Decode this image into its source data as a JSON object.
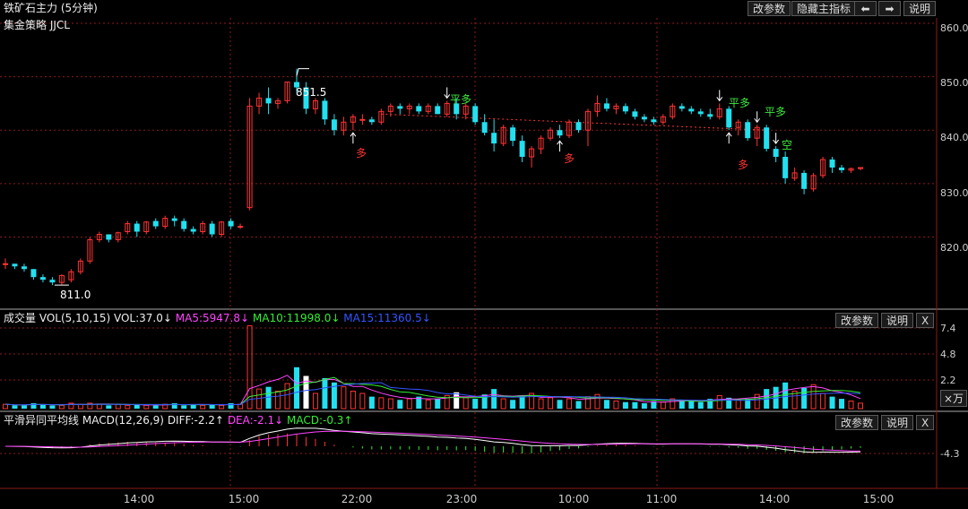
{
  "header": {
    "title": "铁矿石主力 (5分钟)",
    "strategy": "集金策略 JJCL",
    "btn_params": "改参数",
    "btn_hide": "隐藏主指标",
    "btn_left": "⬅",
    "btn_right": "➡",
    "btn_help": "说明"
  },
  "colors": {
    "up": "#ff3333",
    "down": "#22e0f0",
    "bg": "#000000",
    "grid": "#8b1a1a"
  },
  "main_chart": {
    "price_axis": [
      "860.0",
      "850.0",
      "840.0",
      "830.0",
      "820.0"
    ],
    "price_range": [
      807,
      861
    ],
    "high_label": "851.5",
    "low_label": "811.0",
    "signals": [
      {
        "text": "平多",
        "idx": 47,
        "pos": "above"
      },
      {
        "text": "平多",
        "idx": 76,
        "pos": "above"
      },
      {
        "text": "平多",
        "idx": 80,
        "pos": "above"
      },
      {
        "text": "空",
        "idx": 82,
        "pos": "above"
      },
      {
        "text": "多",
        "idx": 37,
        "pos": "below"
      },
      {
        "text": "多",
        "idx": 59,
        "pos": "below"
      },
      {
        "text": "多",
        "idx": 77,
        "pos": "below"
      }
    ],
    "candles": [
      [
        815,
        816,
        814,
        815
      ],
      [
        815,
        815,
        814,
        814.5
      ],
      [
        814.5,
        815,
        813.5,
        814
      ],
      [
        814,
        814,
        812,
        812.5
      ],
      [
        812.5,
        813,
        811.5,
        812
      ],
      [
        812,
        812.5,
        811,
        811.5
      ],
      [
        811.5,
        813,
        811,
        812.8
      ],
      [
        812,
        814,
        811.5,
        813.5
      ],
      [
        813.5,
        816,
        813,
        815.5
      ],
      [
        815.5,
        820,
        815,
        819.5
      ],
      [
        819.5,
        821,
        819,
        820.5
      ],
      [
        820.5,
        820.5,
        819,
        819.5
      ],
      [
        819.5,
        821,
        819,
        820.8
      ],
      [
        821,
        823,
        820.5,
        822.5
      ],
      [
        822.5,
        823,
        820,
        821
      ],
      [
        821,
        823,
        820.5,
        822.8
      ],
      [
        823,
        823.5,
        821.5,
        822
      ],
      [
        822,
        824,
        821.5,
        823.5
      ],
      [
        823.5,
        824,
        822,
        823
      ],
      [
        823,
        823.5,
        821,
        821.5
      ],
      [
        821.5,
        822,
        820.5,
        821
      ],
      [
        821,
        823,
        820.5,
        822.5
      ],
      [
        822.5,
        823,
        820,
        820.5
      ],
      [
        820.5,
        823,
        820,
        822.8
      ],
      [
        823,
        823.5,
        821.5,
        822
      ],
      [
        822,
        822.5,
        821.5,
        822
      ],
      [
        825.5,
        846,
        825,
        844.5
      ],
      [
        844.5,
        847,
        843,
        846
      ],
      [
        846,
        848,
        843,
        845
      ],
      [
        845,
        846,
        844,
        845.5
      ],
      [
        845.5,
        849,
        845,
        849
      ],
      [
        849,
        851.5,
        847,
        848
      ],
      [
        848,
        849,
        843,
        844
      ],
      [
        844,
        846,
        843,
        845.5
      ],
      [
        845.5,
        846,
        841,
        842
      ],
      [
        842,
        843,
        839,
        840
      ],
      [
        840,
        842.5,
        839,
        841.5
      ],
      [
        841.5,
        843,
        840,
        842.5
      ],
      [
        842,
        843,
        841,
        842
      ],
      [
        842,
        842.5,
        841,
        841.5
      ],
      [
        841.5,
        844,
        841,
        843.5
      ],
      [
        843.5,
        845,
        842.5,
        844.5
      ],
      [
        844.5,
        845,
        843,
        844
      ],
      [
        844,
        845,
        843,
        844.5
      ],
      [
        844.5,
        845,
        843,
        843.5
      ],
      [
        843.5,
        845,
        843,
        844.5
      ],
      [
        844.5,
        845,
        843,
        843
      ],
      [
        843,
        845.5,
        842.5,
        845
      ],
      [
        845,
        846,
        842,
        843
      ],
      [
        843,
        845,
        842,
        844.5
      ],
      [
        844.5,
        845,
        841,
        841.5
      ],
      [
        841.5,
        843,
        839,
        839.5
      ],
      [
        839.5,
        842,
        836,
        837.5
      ],
      [
        837.5,
        841,
        837,
        840.5
      ],
      [
        840.5,
        841,
        837,
        838
      ],
      [
        838,
        839,
        834,
        835
      ],
      [
        835,
        837,
        833,
        836.5
      ],
      [
        836.5,
        839,
        835.5,
        838.5
      ],
      [
        838.5,
        840.5,
        838,
        840
      ],
      [
        840,
        841,
        838.5,
        839
      ],
      [
        839,
        842,
        838.5,
        841.5
      ],
      [
        841.5,
        842,
        839.5,
        840
      ],
      [
        840,
        844,
        837,
        843.5
      ],
      [
        843.5,
        846.5,
        842.5,
        845
      ],
      [
        845,
        846,
        843.5,
        844
      ],
      [
        844,
        845,
        843,
        844.5
      ],
      [
        844.5,
        845,
        843,
        843.5
      ],
      [
        843.5,
        844,
        842,
        842.5
      ],
      [
        842.5,
        843,
        841.5,
        842
      ],
      [
        842,
        842.5,
        841,
        841.5
      ],
      [
        841.5,
        843,
        841,
        842.5
      ],
      [
        842.5,
        845,
        842,
        844.5
      ],
      [
        844.5,
        845,
        843.5,
        844
      ],
      [
        844,
        844.5,
        843,
        843.5
      ],
      [
        843.5,
        844,
        842.5,
        843
      ],
      [
        843,
        844,
        842,
        842.5
      ],
      [
        842.5,
        845,
        842,
        844
      ],
      [
        844,
        844.5,
        840,
        840.5
      ],
      [
        840.5,
        842,
        839,
        841.5
      ],
      [
        841.5,
        842,
        838,
        838.5
      ],
      [
        838.5,
        841,
        837,
        840.5
      ],
      [
        840.5,
        841,
        836,
        836.5
      ],
      [
        836.5,
        837,
        834,
        835
      ],
      [
        835,
        836,
        830,
        831
      ],
      [
        831,
        833,
        830.5,
        832
      ],
      [
        832,
        832.5,
        828,
        829
      ],
      [
        829,
        832,
        828.5,
        831.5
      ],
      [
        831.5,
        835,
        831,
        834.5
      ],
      [
        834.5,
        835,
        832,
        833
      ],
      [
        833,
        833.5,
        832,
        832.5
      ],
      [
        832.5,
        833,
        832,
        832.8
      ],
      [
        832.8,
        833,
        832.5,
        833
      ]
    ]
  },
  "volume": {
    "title": "成交量",
    "params": "VOL(5,10,15)",
    "vol": "VOL:37.0↓",
    "ma5": "MA5:5947.8↓",
    "ma10": "MA10:11998.0↓",
    "ma15": "MA15:11360.5↓",
    "btn_params": "改参数",
    "btn_help": "说明",
    "btn_close": "X",
    "axis": [
      "7.4",
      "4.8",
      "2.2"
    ],
    "unit": "×万",
    "values": [
      0.4,
      0.3,
      0.3,
      0.5,
      0.4,
      0.3,
      0.3,
      0.5,
      0.4,
      0.5,
      0.4,
      0.3,
      0.4,
      0.3,
      0.4,
      0.3,
      0.3,
      0.4,
      0.5,
      0.3,
      0.4,
      0.3,
      0.4,
      0.3,
      0.5,
      0.4,
      7.6,
      1.8,
      2.0,
      1.6,
      2.3,
      3.8,
      3.0,
      1.4,
      2.8,
      2.4,
      2.0,
      1.6,
      1.4,
      1.1,
      1.0,
      0.9,
      0.8,
      0.9,
      1.1,
      0.8,
      0.9,
      1.2,
      1.5,
      1.0,
      0.9,
      1.3,
      1.8,
      0.9,
      0.8,
      1.2,
      1.4,
      0.9,
      1.0,
      0.8,
      0.9,
      0.7,
      1.1,
      1.3,
      0.8,
      0.7,
      0.6,
      0.6,
      0.5,
      0.7,
      0.6,
      0.9,
      0.8,
      0.7,
      0.6,
      0.9,
      1.2,
      1.0,
      0.8,
      0.9,
      1.3,
      1.8,
      2.0,
      2.4,
      1.6,
      1.9,
      2.2,
      1.4,
      1.1,
      0.9,
      0.7,
      0.5
    ]
  },
  "macd": {
    "title": "平滑异同平均线",
    "params": "MACD(12,26,9)",
    "diff": "DIFF:-2.2↑",
    "dea": "DEA:-2.1↓",
    "macd": "MACD:-0.3↑",
    "btn_params": "改参数",
    "btn_help": "说明",
    "btn_close": "X",
    "axis": [
      "-4.3"
    ]
  },
  "time_axis": [
    "14:00",
    "15:00",
    "22:00",
    "23:00",
    "10:00",
    "11:00",
    "14:00",
    "15:00"
  ]
}
